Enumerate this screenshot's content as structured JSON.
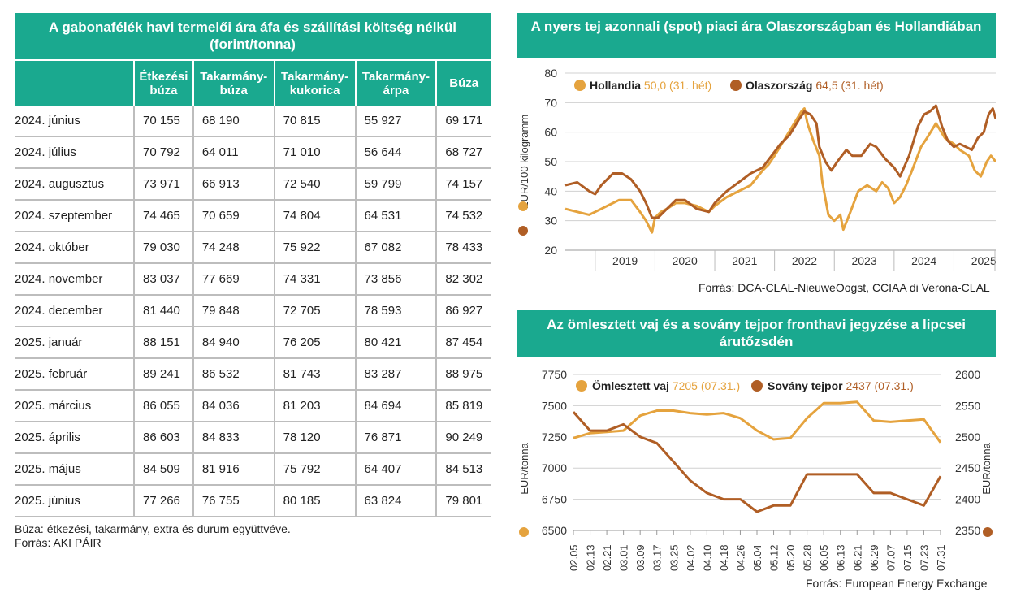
{
  "table": {
    "title": "A gabonafélék havi termelői ára áfa és szállítási költség nélkül (forint/tonna)",
    "columns": [
      "Étkezési búza",
      "Takarmány-búza",
      "Takarmány-kukorica",
      "Takarmány-árpa",
      "Búza"
    ],
    "rows": [
      {
        "label": "2024. június",
        "values": [
          "70 155",
          "68 190",
          "70 815",
          "55 927",
          "69 171"
        ]
      },
      {
        "label": "2024. július",
        "values": [
          "70 792",
          "64 011",
          "71 010",
          "56 644",
          "68 727"
        ]
      },
      {
        "label": "2024. augusztus",
        "values": [
          "73 971",
          "66 913",
          "72 540",
          "59 799",
          "74 157"
        ]
      },
      {
        "label": "2024. szeptember",
        "values": [
          "74 465",
          "70 659",
          "74 804",
          "64 531",
          "74 532"
        ]
      },
      {
        "label": "2024. október",
        "values": [
          "79 030",
          "74 248",
          "75 922",
          "67 082",
          "78 433"
        ]
      },
      {
        "label": "2024. november",
        "values": [
          "83 037",
          "77 669",
          "74 331",
          "73 856",
          "82 302"
        ]
      },
      {
        "label": "2024. december",
        "values": [
          "81 440",
          "79 848",
          "72 705",
          "78 593",
          "86 927"
        ]
      },
      {
        "label": "2025. január",
        "values": [
          "88 151",
          "84 940",
          "76 205",
          "80 421",
          "87 454"
        ]
      },
      {
        "label": "2025. február",
        "values": [
          "89 241",
          "86 532",
          "81 743",
          "83 287",
          "88 975"
        ]
      },
      {
        "label": "2025. március",
        "values": [
          "86 055",
          "84 036",
          "81 203",
          "84 694",
          "85 819"
        ]
      },
      {
        "label": "2025. április",
        "values": [
          "86 603",
          "84 833",
          "78 120",
          "76 871",
          "90 249"
        ]
      },
      {
        "label": "2025. május",
        "values": [
          "84 509",
          "81 916",
          "75 792",
          "64 407",
          "84 513"
        ]
      },
      {
        "label": "2025. június",
        "values": [
          "77 266",
          "76 755",
          "80 185",
          "63 824",
          "79 801"
        ]
      }
    ],
    "note1": "Búza: étkezési, takarmány, extra és durum együttvéve.",
    "note2": "Forrás: AKI PÁIR"
  },
  "colors": {
    "header": "#1aa98f",
    "light": "#e5a33e",
    "dark": "#b05e25",
    "grid": "#d0d0d0"
  },
  "chart_data": [
    {
      "type": "line",
      "title": "A nyers tej azonnali (spot) piaci ára Olaszországban és Hollandiában",
      "ylabel": "EUR/100 kilogramm",
      "ylim": [
        20,
        80
      ],
      "yticks": [
        20,
        30,
        40,
        50,
        60,
        70,
        80
      ],
      "xticks": [
        "2019",
        "2020",
        "2021",
        "2022",
        "2023",
        "2024",
        "2025"
      ],
      "xlim": [
        2018.5,
        2025.7
      ],
      "source": "Forrás: DCA-CLAL-NieuweOogst, CCIAA di Verona-CLAL",
      "series": [
        {
          "name": "Hollandia",
          "legend_value": "50,0 (31. hét)",
          "color": "#e5a33e",
          "x": [
            2018.5,
            2018.7,
            2018.9,
            2019.0,
            2019.2,
            2019.4,
            2019.6,
            2019.75,
            2019.85,
            2019.95,
            2020.0,
            2020.1,
            2020.2,
            2020.35,
            2020.5,
            2020.7,
            2020.9,
            2021.0,
            2021.2,
            2021.4,
            2021.6,
            2021.8,
            2021.9,
            2022.0,
            2022.15,
            2022.3,
            2022.45,
            2022.5,
            2022.55,
            2022.65,
            2022.75,
            2022.8,
            2022.9,
            2023.0,
            2023.1,
            2023.15,
            2023.25,
            2023.4,
            2023.55,
            2023.7,
            2023.8,
            2023.9,
            2024.0,
            2024.1,
            2024.2,
            2024.3,
            2024.45,
            2024.55,
            2024.7,
            2024.85,
            2025.0,
            2025.1,
            2025.25,
            2025.35,
            2025.45,
            2025.55,
            2025.62,
            2025.7
          ],
          "y": [
            34,
            33,
            32,
            33,
            35,
            37,
            37,
            33,
            30,
            26,
            31,
            33,
            34,
            36,
            36,
            35,
            33,
            35,
            38,
            40,
            42,
            47,
            49,
            52,
            57,
            62,
            67,
            68,
            63,
            57,
            52,
            43,
            32,
            30,
            32,
            27,
            32,
            40,
            42,
            40,
            43,
            41,
            36,
            38,
            42,
            47,
            55,
            58,
            63,
            58,
            56,
            54,
            52,
            47,
            45,
            50,
            52,
            50
          ]
        },
        {
          "name": "Olaszország",
          "legend_value": "64,5 (31. hét)",
          "color": "#b05e25",
          "x": [
            2018.5,
            2018.7,
            2018.9,
            2019.0,
            2019.1,
            2019.3,
            2019.45,
            2019.6,
            2019.75,
            2019.85,
            2019.95,
            2020.05,
            2020.2,
            2020.35,
            2020.5,
            2020.7,
            2020.9,
            2021.0,
            2021.2,
            2021.4,
            2021.6,
            2021.8,
            2021.95,
            2022.1,
            2022.25,
            2022.4,
            2022.5,
            2022.6,
            2022.7,
            2022.75,
            2022.85,
            2022.95,
            2023.05,
            2023.2,
            2023.3,
            2023.45,
            2023.6,
            2023.7,
            2023.85,
            2024.0,
            2024.1,
            2024.25,
            2024.4,
            2024.5,
            2024.6,
            2024.7,
            2024.8,
            2024.9,
            2025.0,
            2025.1,
            2025.2,
            2025.3,
            2025.4,
            2025.5,
            2025.58,
            2025.65,
            2025.7
          ],
          "y": [
            42,
            43,
            40,
            39,
            42,
            46,
            46,
            44,
            40,
            36,
            31,
            31,
            34,
            37,
            37,
            34,
            33,
            36,
            40,
            43,
            46,
            48,
            52,
            56,
            59,
            64,
            67,
            66,
            63,
            55,
            50,
            47,
            50,
            54,
            52,
            52,
            56,
            55,
            51,
            48,
            45,
            52,
            62,
            66,
            67,
            69,
            62,
            57,
            55,
            56,
            55,
            54,
            58,
            60,
            66,
            68,
            64.5
          ]
        }
      ]
    },
    {
      "type": "line",
      "title": "Az ömlesztett vaj és a sovány tejpor fronthavi jegyzése a lipcsei árutőzsdén",
      "ylabel": "EUR/tonna",
      "ylabel_right": "EUR/tonna",
      "ylim": [
        6500,
        7750
      ],
      "yticks": [
        6500,
        6750,
        7000,
        7250,
        7500,
        7750
      ],
      "ylim_right": [
        2350,
        2600
      ],
      "yticks_right": [
        2350,
        2400,
        2450,
        2500,
        2550,
        2600
      ],
      "categories": [
        "02.05",
        "02.13",
        "02.21",
        "03.01",
        "03.09",
        "03.17",
        "03.25",
        "04.02",
        "04.10",
        "04.18",
        "04.26",
        "05.04",
        "05.12",
        "05.20",
        "05.28",
        "06.05",
        "06.13",
        "06.21",
        "06.29",
        "07.07",
        "07.15",
        "07.23",
        "07.31"
      ],
      "source": "Forrás: European Energy Exchange",
      "series": [
        {
          "name": "Ömlesztett vaj",
          "legend_value": "7205 (07.31.)",
          "color": "#e5a33e",
          "axis": "left",
          "values": [
            7240,
            7280,
            7290,
            7300,
            7420,
            7460,
            7460,
            7440,
            7430,
            7440,
            7400,
            7300,
            7230,
            7240,
            7400,
            7520,
            7520,
            7530,
            7380,
            7370,
            7380,
            7390,
            7205
          ]
        },
        {
          "name": "Sovány tejpor",
          "legend_value": "2437 (07.31.)",
          "color": "#b05e25",
          "axis": "right",
          "values": [
            2540,
            2510,
            2510,
            2520,
            2500,
            2490,
            2460,
            2430,
            2410,
            2400,
            2400,
            2380,
            2390,
            2390,
            2440,
            2440,
            2440,
            2440,
            2410,
            2410,
            2400,
            2390,
            2437
          ]
        }
      ]
    }
  ]
}
